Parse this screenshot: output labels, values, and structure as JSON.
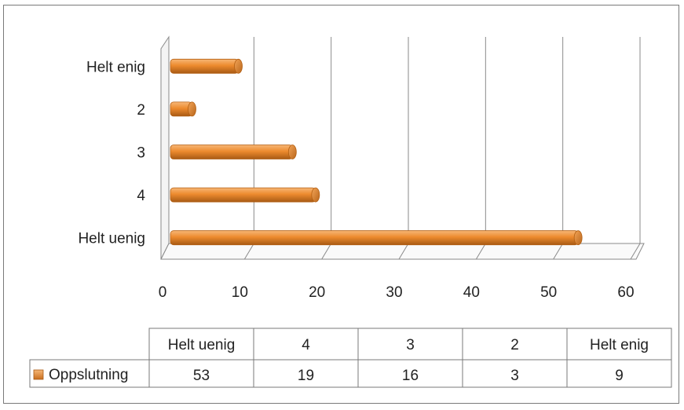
{
  "chart_data": {
    "type": "bar",
    "orientation": "horizontal",
    "categories": [
      "Helt uenig",
      "4",
      "3",
      "2",
      "Helt enig"
    ],
    "series": [
      {
        "name": "Oppslutning",
        "values": [
          53,
          19,
          16,
          3,
          9
        ],
        "color": "#ED8B2E"
      }
    ],
    "xlim": [
      0,
      60
    ],
    "x_ticks": [
      "0",
      "10",
      "20",
      "30",
      "40",
      "50",
      "60"
    ],
    "grid": true,
    "style": "3d-cylinder",
    "legend": "data-table-below"
  }
}
